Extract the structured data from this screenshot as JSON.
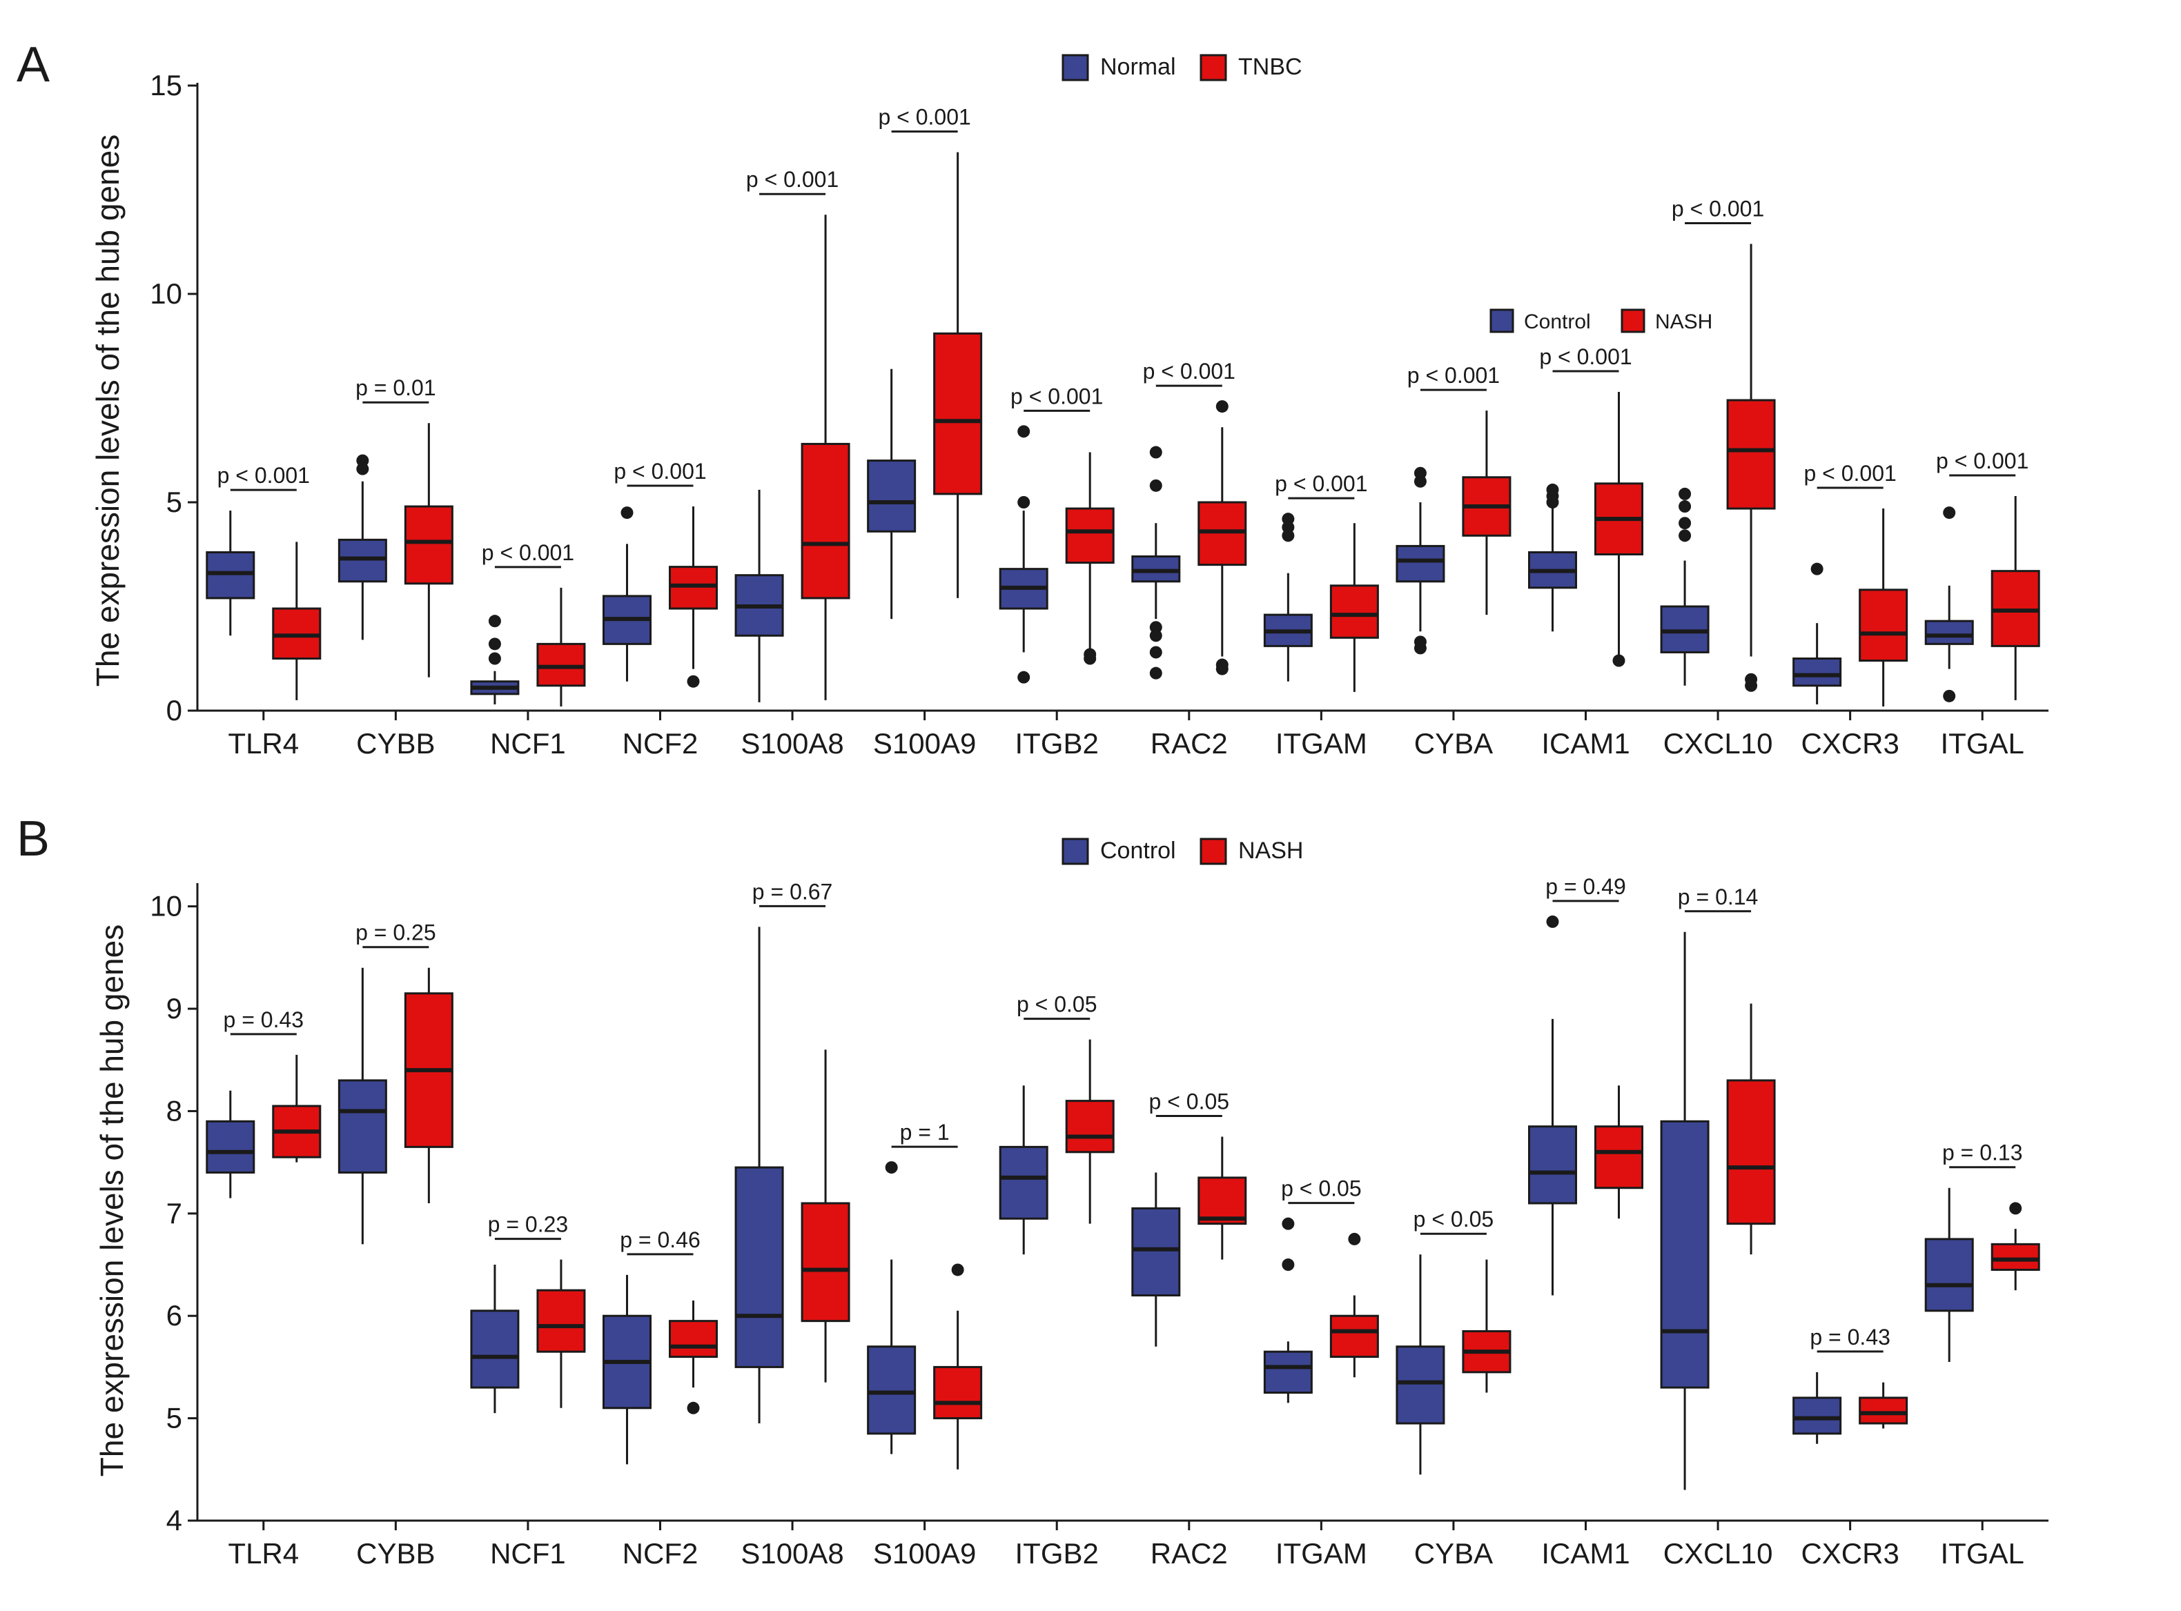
{
  "colors": {
    "normal": "#3c4592",
    "tumor": "#e01010",
    "stroke": "#1a1a1a"
  },
  "chart_data": [
    {
      "type": "box",
      "panel_label": "A",
      "ylabel": "The expression levels of the hub genes",
      "ylim": [
        0,
        15
      ],
      "yticks": [
        0,
        5,
        10,
        15
      ],
      "legend": [
        {
          "label": "Normal",
          "color": "#3c4592"
        },
        {
          "label": "TNBC",
          "color": "#e01010"
        }
      ],
      "inset_legend": [
        {
          "label": "Control",
          "color": "#3c4592"
        },
        {
          "label": "NASH",
          "color": "#e01010"
        }
      ],
      "categories": [
        "TLR4",
        "CYBB",
        "NCF1",
        "NCF2",
        "S100A8",
        "S100A9",
        "ITGB2",
        "RAC2",
        "ITGAM",
        "CYBA",
        "ICAM1",
        "CXCL10",
        "CXCR3",
        "ITGAL"
      ],
      "p_values": [
        "p < 0.001",
        "p = 0.01",
        "p < 0.001",
        "p < 0.001",
        "p < 0.001",
        "p < 0.001",
        "p < 0.001",
        "p < 0.001",
        "p < 0.001",
        "p < 0.001",
        "p < 0.001",
        "p < 0.001",
        "p < 0.001",
        "p < 0.001"
      ],
      "series": [
        {
          "name": "Normal",
          "boxes": [
            {
              "whislo": 1.8,
              "q1": 2.7,
              "med": 3.3,
              "q3": 3.8,
              "whishi": 4.8,
              "outliers": []
            },
            {
              "whislo": 1.7,
              "q1": 3.1,
              "med": 3.65,
              "q3": 4.1,
              "whishi": 5.5,
              "outliers": [
                5.8,
                6.0
              ]
            },
            {
              "whislo": 0.15,
              "q1": 0.4,
              "med": 0.55,
              "q3": 0.7,
              "whishi": 0.95,
              "outliers": [
                1.25,
                1.6,
                2.15
              ]
            },
            {
              "whislo": 0.7,
              "q1": 1.6,
              "med": 2.2,
              "q3": 2.75,
              "whishi": 4.0,
              "outliers": [
                4.75
              ]
            },
            {
              "whislo": 0.2,
              "q1": 1.8,
              "med": 2.5,
              "q3": 3.25,
              "whishi": 5.3,
              "outliers": []
            },
            {
              "whislo": 2.2,
              "q1": 4.3,
              "med": 5.0,
              "q3": 6.0,
              "whishi": 8.2,
              "outliers": []
            },
            {
              "whislo": 1.4,
              "q1": 2.45,
              "med": 2.95,
              "q3": 3.4,
              "whishi": 4.8,
              "outliers": [
                0.8,
                5.0,
                6.7
              ]
            },
            {
              "whislo": 2.2,
              "q1": 3.1,
              "med": 3.35,
              "q3": 3.7,
              "whishi": 4.5,
              "outliers": [
                0.9,
                1.4,
                1.8,
                2.0,
                5.4,
                6.2
              ]
            },
            {
              "whislo": 0.7,
              "q1": 1.55,
              "med": 1.9,
              "q3": 2.3,
              "whishi": 3.3,
              "outliers": [
                4.2,
                4.4,
                4.6
              ]
            },
            {
              "whislo": 1.9,
              "q1": 3.1,
              "med": 3.6,
              "q3": 3.95,
              "whishi": 5.0,
              "outliers": [
                1.5,
                1.65,
                5.5,
                5.7
              ]
            },
            {
              "whislo": 1.9,
              "q1": 2.95,
              "med": 3.35,
              "q3": 3.8,
              "whishi": 4.9,
              "outliers": [
                5.0,
                5.15,
                5.3
              ]
            },
            {
              "whislo": 0.6,
              "q1": 1.4,
              "med": 1.9,
              "q3": 2.5,
              "whishi": 3.6,
              "outliers": [
                4.2,
                4.5,
                4.9,
                5.2
              ]
            },
            {
              "whislo": 0.15,
              "q1": 0.6,
              "med": 0.85,
              "q3": 1.25,
              "whishi": 2.1,
              "outliers": [
                3.4
              ]
            },
            {
              "whislo": 1.0,
              "q1": 1.6,
              "med": 1.8,
              "q3": 2.15,
              "whishi": 3.0,
              "outliers": [
                0.35,
                4.75
              ]
            }
          ]
        },
        {
          "name": "TNBC",
          "boxes": [
            {
              "whislo": 0.25,
              "q1": 1.25,
              "med": 1.8,
              "q3": 2.45,
              "whishi": 4.05,
              "outliers": []
            },
            {
              "whislo": 0.8,
              "q1": 3.05,
              "med": 4.05,
              "q3": 4.9,
              "whishi": 6.9,
              "outliers": []
            },
            {
              "whislo": 0.1,
              "q1": 0.6,
              "med": 1.05,
              "q3": 1.6,
              "whishi": 2.95,
              "outliers": []
            },
            {
              "whislo": 1.0,
              "q1": 2.45,
              "med": 3.0,
              "q3": 3.45,
              "whishi": 4.9,
              "outliers": [
                0.7
              ]
            },
            {
              "whislo": 0.25,
              "q1": 2.7,
              "med": 4.0,
              "q3": 6.4,
              "whishi": 11.9,
              "outliers": []
            },
            {
              "whislo": 2.7,
              "q1": 5.2,
              "med": 6.95,
              "q3": 9.05,
              "whishi": 13.4,
              "outliers": []
            },
            {
              "whislo": 1.4,
              "q1": 3.55,
              "med": 4.3,
              "q3": 4.85,
              "whishi": 6.2,
              "outliers": [
                1.25,
                1.35
              ]
            },
            {
              "whislo": 1.3,
              "q1": 3.5,
              "med": 4.3,
              "q3": 5.0,
              "whishi": 6.8,
              "outliers": [
                1.0,
                1.1,
                7.3
              ]
            },
            {
              "whislo": 0.45,
              "q1": 1.75,
              "med": 2.3,
              "q3": 3.0,
              "whishi": 4.5,
              "outliers": []
            },
            {
              "whislo": 2.3,
              "q1": 4.2,
              "med": 4.9,
              "q3": 5.6,
              "whishi": 7.2,
              "outliers": []
            },
            {
              "whislo": 1.3,
              "q1": 3.75,
              "med": 4.6,
              "q3": 5.45,
              "whishi": 7.65,
              "outliers": [
                1.2
              ]
            },
            {
              "whislo": 1.3,
              "q1": 4.85,
              "med": 6.25,
              "q3": 7.45,
              "whishi": 11.2,
              "outliers": [
                0.6,
                0.75
              ]
            },
            {
              "whislo": 0.1,
              "q1": 1.2,
              "med": 1.85,
              "q3": 2.9,
              "whishi": 4.85,
              "outliers": []
            },
            {
              "whislo": 0.25,
              "q1": 1.55,
              "med": 2.4,
              "q3": 3.35,
              "whishi": 5.15,
              "outliers": []
            }
          ]
        }
      ]
    },
    {
      "type": "box",
      "panel_label": "B",
      "ylabel": "The expression levels of the hub genes",
      "ylim": [
        4,
        10.2
      ],
      "yticks": [
        4,
        5,
        6,
        7,
        8,
        9,
        10
      ],
      "legend": [
        {
          "label": "Control",
          "color": "#3c4592"
        },
        {
          "label": "NASH",
          "color": "#e01010"
        }
      ],
      "categories": [
        "TLR4",
        "CYBB",
        "NCF1",
        "NCF2",
        "S100A8",
        "S100A9",
        "ITGB2",
        "RAC2",
        "ITGAM",
        "CYBA",
        "ICAM1",
        "CXCL10",
        "CXCR3",
        "ITGAL"
      ],
      "p_values": [
        "p = 0.43",
        "p = 0.25",
        "p = 0.23",
        "p = 0.46",
        "p = 0.67",
        "p = 1",
        "p < 0.05",
        "p < 0.05",
        "p < 0.05",
        "p < 0.05",
        "p = 0.49",
        "p = 0.14",
        "p = 0.43",
        "p = 0.13"
      ],
      "series": [
        {
          "name": "Control",
          "boxes": [
            {
              "whislo": 7.15,
              "q1": 7.4,
              "med": 7.6,
              "q3": 7.9,
              "whishi": 8.2,
              "outliers": []
            },
            {
              "whislo": 6.7,
              "q1": 7.4,
              "med": 8.0,
              "q3": 8.3,
              "whishi": 9.4,
              "outliers": []
            },
            {
              "whislo": 5.05,
              "q1": 5.3,
              "med": 5.6,
              "q3": 6.05,
              "whishi": 6.5,
              "outliers": []
            },
            {
              "whislo": 4.55,
              "q1": 5.1,
              "med": 5.55,
              "q3": 6.0,
              "whishi": 6.4,
              "outliers": []
            },
            {
              "whislo": 4.95,
              "q1": 5.5,
              "med": 6.0,
              "q3": 7.45,
              "whishi": 9.8,
              "outliers": []
            },
            {
              "whislo": 4.65,
              "q1": 4.85,
              "med": 5.25,
              "q3": 5.7,
              "whishi": 6.55,
              "outliers": [
                7.45
              ]
            },
            {
              "whislo": 6.6,
              "q1": 6.95,
              "med": 7.35,
              "q3": 7.65,
              "whishi": 8.25,
              "outliers": []
            },
            {
              "whislo": 5.7,
              "q1": 6.2,
              "med": 6.65,
              "q3": 7.05,
              "whishi": 7.4,
              "outliers": []
            },
            {
              "whislo": 5.15,
              "q1": 5.25,
              "med": 5.5,
              "q3": 5.65,
              "whishi": 5.75,
              "outliers": [
                6.5,
                6.9
              ]
            },
            {
              "whislo": 4.45,
              "q1": 4.95,
              "med": 5.35,
              "q3": 5.7,
              "whishi": 6.6,
              "outliers": []
            },
            {
              "whislo": 6.2,
              "q1": 7.1,
              "med": 7.4,
              "q3": 7.85,
              "whishi": 8.9,
              "outliers": [
                9.85
              ]
            },
            {
              "whislo": 4.3,
              "q1": 5.3,
              "med": 5.85,
              "q3": 7.9,
              "whishi": 9.75,
              "outliers": []
            },
            {
              "whislo": 4.75,
              "q1": 4.85,
              "med": 5.0,
              "q3": 5.2,
              "whishi": 5.45,
              "outliers": []
            },
            {
              "whislo": 5.55,
              "q1": 6.05,
              "med": 6.3,
              "q3": 6.75,
              "whishi": 7.25,
              "outliers": []
            }
          ]
        },
        {
          "name": "NASH",
          "boxes": [
            {
              "whislo": 7.5,
              "q1": 7.55,
              "med": 7.8,
              "q3": 8.05,
              "whishi": 8.55,
              "outliers": []
            },
            {
              "whislo": 7.1,
              "q1": 7.65,
              "med": 8.4,
              "q3": 9.15,
              "whishi": 9.4,
              "outliers": []
            },
            {
              "whislo": 5.1,
              "q1": 5.65,
              "med": 5.9,
              "q3": 6.25,
              "whishi": 6.55,
              "outliers": []
            },
            {
              "whislo": 5.3,
              "q1": 5.6,
              "med": 5.7,
              "q3": 5.95,
              "whishi": 6.15,
              "outliers": [
                5.1
              ]
            },
            {
              "whislo": 5.35,
              "q1": 5.95,
              "med": 6.45,
              "q3": 7.1,
              "whishi": 8.6,
              "outliers": []
            },
            {
              "whislo": 4.5,
              "q1": 5.0,
              "med": 5.15,
              "q3": 5.5,
              "whishi": 6.05,
              "outliers": [
                6.45
              ]
            },
            {
              "whislo": 6.9,
              "q1": 7.6,
              "med": 7.75,
              "q3": 8.1,
              "whishi": 8.7,
              "outliers": []
            },
            {
              "whislo": 6.55,
              "q1": 6.9,
              "med": 6.95,
              "q3": 7.35,
              "whishi": 7.75,
              "outliers": []
            },
            {
              "whislo": 5.4,
              "q1": 5.6,
              "med": 5.85,
              "q3": 6.0,
              "whishi": 6.2,
              "outliers": [
                6.75
              ]
            },
            {
              "whislo": 5.25,
              "q1": 5.45,
              "med": 5.65,
              "q3": 5.85,
              "whishi": 6.55,
              "outliers": []
            },
            {
              "whislo": 6.95,
              "q1": 7.25,
              "med": 7.6,
              "q3": 7.85,
              "whishi": 8.25,
              "outliers": []
            },
            {
              "whislo": 6.6,
              "q1": 6.9,
              "med": 7.45,
              "q3": 8.3,
              "whishi": 9.05,
              "outliers": []
            },
            {
              "whislo": 4.9,
              "q1": 4.95,
              "med": 5.05,
              "q3": 5.2,
              "whishi": 5.35,
              "outliers": []
            },
            {
              "whislo": 6.25,
              "q1": 6.45,
              "med": 6.55,
              "q3": 6.7,
              "whishi": 6.85,
              "outliers": [
                7.05
              ]
            }
          ]
        }
      ]
    }
  ]
}
